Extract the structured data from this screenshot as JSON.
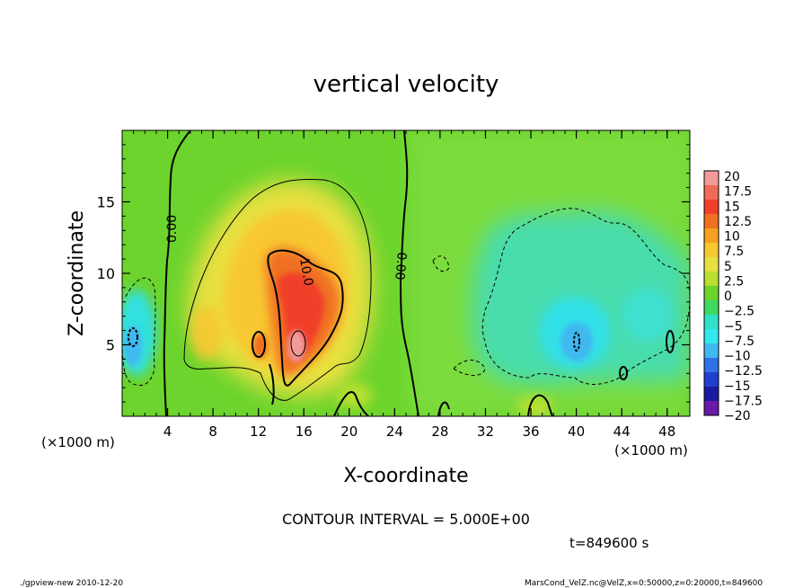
{
  "chart_data": {
    "type": "heatmap",
    "title": "vertical velocity",
    "xlabel": "X-coordinate",
    "ylabel": "Z-coordinate",
    "x_unit_left": "(×1000 m)",
    "x_unit_right": "(×1000 m)",
    "xlim": [
      0,
      50
    ],
    "ylim": [
      0,
      20
    ],
    "x_ticks": [
      4,
      8,
      12,
      16,
      20,
      24,
      28,
      32,
      36,
      40,
      44,
      48
    ],
    "y_ticks": [
      5,
      10,
      15
    ],
    "colorbar": {
      "labels": [
        "20",
        "17.5",
        "15",
        "12.5",
        "10",
        "7.5",
        "5",
        "2.5",
        "0",
        "−2.5",
        "−5",
        "−7.5",
        "−10",
        "−12.5",
        "−15",
        "−17.5",
        "−20"
      ],
      "levels": [
        20,
        17.5,
        15,
        12.5,
        10,
        7.5,
        5,
        2.5,
        0,
        -2.5,
        -5,
        -7.5,
        -10,
        -12.5,
        -15,
        -17.5,
        -20
      ],
      "colors": [
        "#f29a9a",
        "#f06a5a",
        "#f0402a",
        "#f07020",
        "#f5a020",
        "#f8c830",
        "#e8e040",
        "#b8e030",
        "#6cd42c",
        "#40d860",
        "#30e0c8",
        "#30e8f0",
        "#40b8f0",
        "#3070e8",
        "#2040d0",
        "#1a1aa0",
        "#6a1aa8"
      ]
    },
    "contour_labels": [
      "0.00",
      "10.0",
      "0.00"
    ],
    "contour_interval": "CONTOUR INTERVAL = 5.000E+00",
    "time": "t=849600 s",
    "footer_left": "./gpview-new  2010-12-20",
    "footer_right": "MarsCond_VelZ.nc@VelZ,x=0:50000,z=0:20000,t=849600"
  }
}
